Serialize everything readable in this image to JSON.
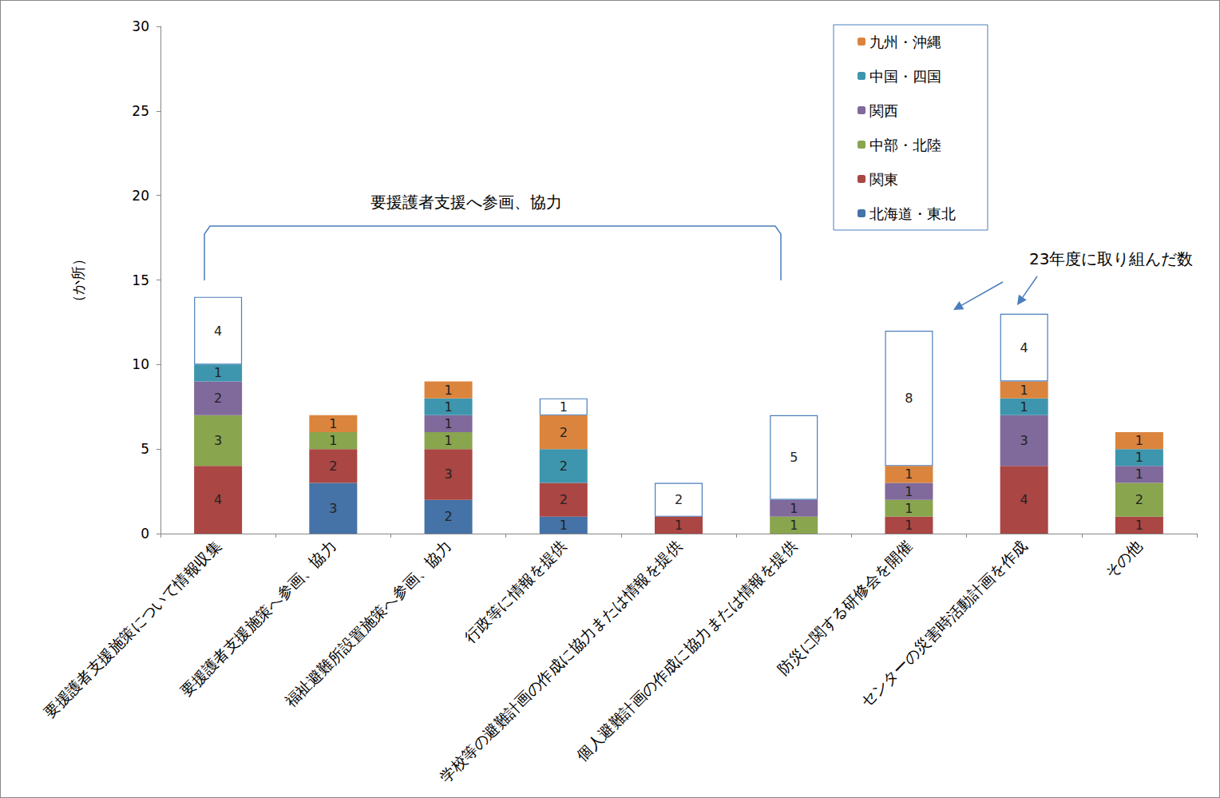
{
  "chart_data": {
    "type": "bar",
    "stacked": true,
    "data_labels": true,
    "grid": false,
    "legend": "top-right",
    "y_label": "（か所）",
    "annotations": [
      "要援護者支援へ参画、協力"
    ],
    "categories": [
      "要援護者支援施策について情報収集",
      "要援護者支援施策へ参画、協力",
      "福祉避難所設置施策へ参画、協力",
      "行政等に情報を提供",
      "学校等の避難計画の作成に協力または情報を提供",
      "個人避難計画の作成に協力または情報を提供",
      "防災に関する研修会を開催",
      "センターの災害時活動計画を作成",
      "その他"
    ],
    "ylim": [
      0,
      30
    ],
    "yticks": [
      0,
      5,
      10,
      15,
      20,
      25,
      30
    ],
    "series": [
      {
        "name": "北海道・東北",
        "color": "#4572a7",
        "values": [
          null,
          3,
          2,
          1,
          null,
          null,
          null,
          null,
          null
        ]
      },
      {
        "name": "関東",
        "color": "#aa4643",
        "values": [
          4,
          2,
          3,
          2,
          1,
          null,
          1,
          4,
          1
        ]
      },
      {
        "name": "中部・北陸",
        "color": "#89a54e",
        "values": [
          3,
          1,
          1,
          null,
          null,
          1,
          1,
          null,
          2
        ]
      },
      {
        "name": "関西",
        "color": "#80699b",
        "values": [
          2,
          null,
          1,
          null,
          null,
          1,
          1,
          3,
          1
        ]
      },
      {
        "name": "中国・四国",
        "color": "#3d96ae",
        "values": [
          1,
          null,
          1,
          2,
          null,
          null,
          null,
          1,
          1
        ]
      },
      {
        "name": "九州・沖縄",
        "color": "#db843d",
        "values": [
          null,
          1,
          1,
          2,
          null,
          null,
          1,
          1,
          1
        ]
      }
    ],
    "highlight": {
      "label": "23年度に取り組んだ数",
      "color": "#ffffff",
      "values": [
        4,
        null,
        null,
        1,
        2,
        5,
        8,
        4,
        null
      ]
    }
  }
}
